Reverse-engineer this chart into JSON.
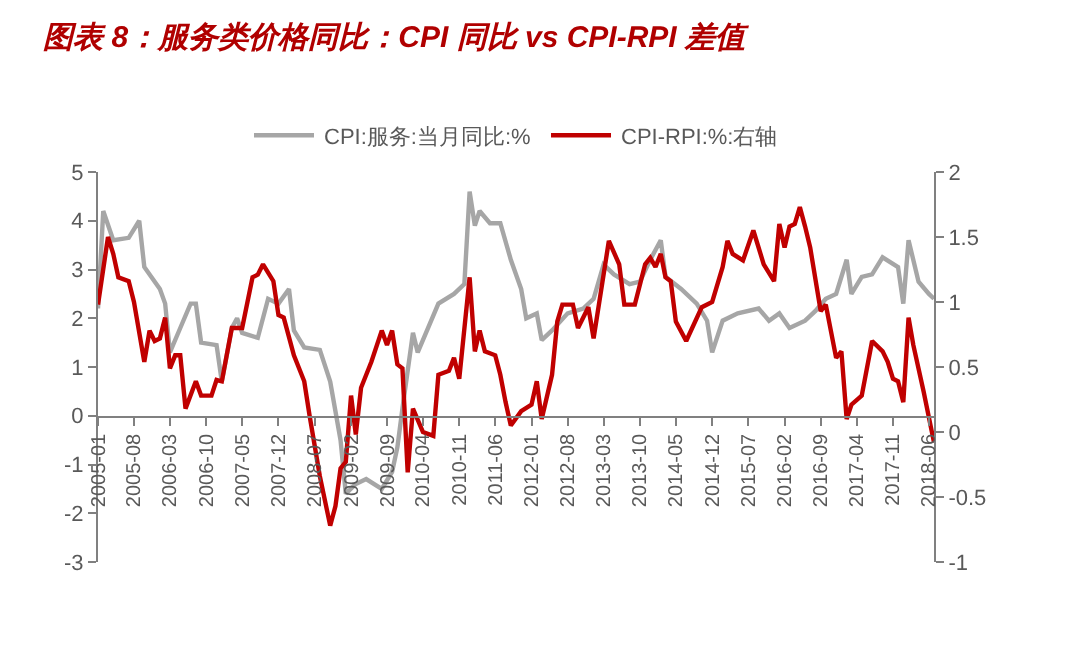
{
  "chart_data": {
    "type": "line",
    "title": "图表 8：服务类价格同比：CPI 同比 vs CPI-RPI 差值",
    "series": [
      {
        "name": "CPI:服务:当月同比:%",
        "color": "#a6a6a6",
        "axis": "y",
        "x": [
          "2005-01",
          "2005-02",
          "2005-04",
          "2005-07",
          "2005-09",
          "2005-10",
          "2006-01",
          "2006-02",
          "2006-03",
          "2006-05",
          "2006-07",
          "2006-08",
          "2006-09",
          "2006-12",
          "2007-01",
          "2007-03",
          "2007-04",
          "2007-05",
          "2007-08",
          "2007-10",
          "2007-12",
          "2008-02",
          "2008-03",
          "2008-05",
          "2008-08",
          "2008-10",
          "2008-12",
          "2009-01",
          "2009-03",
          "2009-05",
          "2009-08",
          "2009-10",
          "2009-11",
          "2009-12",
          "2010-02",
          "2010-03",
          "2010-07",
          "2010-10",
          "2010-12",
          "2011-01",
          "2011-02",
          "2011-03",
          "2011-05",
          "2011-07",
          "2011-09",
          "2011-11",
          "2011-12",
          "2012-02",
          "2012-03",
          "2012-05",
          "2012-08",
          "2012-11",
          "2013-01",
          "2013-03",
          "2013-05",
          "2013-08",
          "2013-10",
          "2013-12",
          "2014-02",
          "2014-03",
          "2014-06",
          "2014-09",
          "2014-11",
          "2014-12",
          "2015-02",
          "2015-05",
          "2015-09",
          "2015-11",
          "2016-01",
          "2016-03",
          "2016-06",
          "2016-08",
          "2016-10",
          "2016-12",
          "2017-02",
          "2017-03",
          "2017-05",
          "2017-07",
          "2017-09",
          "2017-12",
          "2018-01",
          "2018-02",
          "2018-04",
          "2018-06",
          "2018-07"
        ],
        "values": [
          2.2,
          4.2,
          3.6,
          3.65,
          4.0,
          3.05,
          2.6,
          2.3,
          1.3,
          1.8,
          2.3,
          2.3,
          1.5,
          1.45,
          0.7,
          1.8,
          2.0,
          1.7,
          1.6,
          2.4,
          2.3,
          2.6,
          1.75,
          1.4,
          1.35,
          0.7,
          -0.5,
          -1.6,
          -1.4,
          -1.3,
          -1.5,
          -1.15,
          -0.65,
          0.15,
          1.7,
          1.3,
          2.3,
          2.5,
          2.7,
          4.6,
          3.9,
          4.2,
          3.95,
          3.95,
          3.2,
          2.6,
          2.0,
          2.1,
          1.55,
          1.75,
          2.1,
          2.2,
          2.4,
          3.1,
          2.9,
          2.7,
          2.75,
          3.2,
          3.6,
          2.85,
          2.6,
          2.3,
          1.95,
          1.3,
          1.95,
          2.1,
          2.2,
          1.95,
          2.1,
          1.8,
          1.95,
          2.15,
          2.4,
          2.5,
          3.2,
          2.5,
          2.85,
          2.9,
          3.25,
          3.05,
          2.3,
          3.6,
          2.75,
          2.5,
          2.4
        ]
      },
      {
        "name": "CPI-RPI:%:右轴",
        "color": "#c00000",
        "axis": "y2",
        "x": [
          "2005-01",
          "2005-03",
          "2005-04",
          "2005-05",
          "2005-07",
          "2005-08",
          "2005-10",
          "2005-11",
          "2005-12",
          "2006-01",
          "2006-02",
          "2006-03",
          "2006-04",
          "2006-05",
          "2006-06",
          "2006-08",
          "2006-09",
          "2006-11",
          "2006-12",
          "2007-01",
          "2007-03",
          "2007-05",
          "2007-07",
          "2007-08",
          "2007-09",
          "2007-11",
          "2007-12",
          "2008-01",
          "2008-03",
          "2008-05",
          "2008-06",
          "2008-08",
          "2008-10",
          "2008-11",
          "2008-12",
          "2009-01",
          "2009-02",
          "2009-03",
          "2009-04",
          "2009-06",
          "2009-08",
          "2009-09",
          "2009-10",
          "2009-11",
          "2009-12",
          "2010-01",
          "2010-02",
          "2010-04",
          "2010-06",
          "2010-07",
          "2010-09",
          "2010-10",
          "2010-11",
          "2011-01",
          "2011-02",
          "2011-03",
          "2011-04",
          "2011-06",
          "2011-07",
          "2011-08",
          "2011-09",
          "2011-11",
          "2012-01",
          "2012-02",
          "2012-03",
          "2012-05",
          "2012-06",
          "2012-07",
          "2012-09",
          "2012-10",
          "2012-12",
          "2013-01",
          "2013-04",
          "2013-06",
          "2013-07",
          "2013-09",
          "2013-11",
          "2013-12",
          "2014-01",
          "2014-02",
          "2014-03",
          "2014-04",
          "2014-05",
          "2014-07",
          "2014-10",
          "2014-12",
          "2015-02",
          "2015-03",
          "2015-04",
          "2015-06",
          "2015-08",
          "2015-10",
          "2015-12",
          "2016-01",
          "2016-02",
          "2016-03",
          "2016-04",
          "2016-05",
          "2016-06",
          "2016-07",
          "2016-09",
          "2016-10",
          "2016-12",
          "2017-01",
          "2017-02",
          "2017-03",
          "2017-05",
          "2017-07",
          "2017-09",
          "2017-10",
          "2017-11",
          "2017-12",
          "2018-01",
          "2018-02",
          "2018-03",
          "2018-05",
          "2018-07"
        ],
        "values": [
          0.98,
          1.5,
          1.37,
          1.19,
          1.16,
          1.0,
          0.54,
          0.78,
          0.7,
          0.72,
          0.88,
          0.49,
          0.59,
          0.59,
          0.18,
          0.39,
          0.28,
          0.28,
          0.4,
          0.39,
          0.8,
          0.8,
          1.19,
          1.21,
          1.29,
          1.16,
          0.9,
          0.88,
          0.59,
          0.39,
          0.13,
          -0.34,
          -0.72,
          -0.57,
          -0.28,
          -0.23,
          0.28,
          -0.02,
          0.34,
          0.54,
          0.78,
          0.67,
          0.78,
          0.52,
          0.49,
          -0.31,
          0.18,
          0.0,
          -0.03,
          0.44,
          0.47,
          0.57,
          0.41,
          1.19,
          0.62,
          0.78,
          0.62,
          0.59,
          0.44,
          0.23,
          0.05,
          0.16,
          0.21,
          0.39,
          0.1,
          0.44,
          0.85,
          0.98,
          0.98,
          0.8,
          0.96,
          0.72,
          1.47,
          1.29,
          0.98,
          0.98,
          1.29,
          1.34,
          1.27,
          1.37,
          1.19,
          1.16,
          0.85,
          0.7,
          0.96,
          1.0,
          1.27,
          1.47,
          1.37,
          1.32,
          1.55,
          1.29,
          1.16,
          1.6,
          1.42,
          1.58,
          1.6,
          1.73,
          1.58,
          1.42,
          0.93,
          0.98,
          0.57,
          0.62,
          0.1,
          0.21,
          0.28,
          0.7,
          0.62,
          0.54,
          0.41,
          0.39,
          0.23,
          0.88,
          0.67,
          0.31,
          -0.08
        ]
      }
    ],
    "xlim": [
      "2005-01",
      "2018-07"
    ],
    "xticks": [
      {
        "value": "2005-01",
        "label": "2005-01"
      },
      {
        "value": "2005-08",
        "label": "2005-08"
      },
      {
        "value": "2006-03",
        "label": "2006-03"
      },
      {
        "value": "2006-10",
        "label": "2006-10"
      },
      {
        "value": "2007-05",
        "label": "2007-05"
      },
      {
        "value": "2007-12",
        "label": "2007-12"
      },
      {
        "value": "2008-07",
        "label": "2008-07"
      },
      {
        "value": "2009-02",
        "label": "2009-02"
      },
      {
        "value": "2009-09",
        "label": "2009-09"
      },
      {
        "value": "2010-04",
        "label": "2010-04"
      },
      {
        "value": "2010-11",
        "label": "2010-11"
      },
      {
        "value": "2011-06",
        "label": "2011-06"
      },
      {
        "value": "2012-01",
        "label": "2012-01"
      },
      {
        "value": "2012-08",
        "label": "2012-08"
      },
      {
        "value": "2013-03",
        "label": "2013-03"
      },
      {
        "value": "2013-10",
        "label": "2013-10"
      },
      {
        "value": "2014-05",
        "label": "2014-05"
      },
      {
        "value": "2014-12",
        "label": "2014-12"
      },
      {
        "value": "2015-07",
        "label": "2015-07"
      },
      {
        "value": "2016-02",
        "label": "2016-02"
      },
      {
        "value": "2016-09",
        "label": "2016-09"
      },
      {
        "value": "2017-04",
        "label": "2017-04"
      },
      {
        "value": "2017-11",
        "label": "2017-11"
      },
      {
        "value": "2018-06",
        "label": "2018-06"
      }
    ],
    "ylim": [
      -3,
      5
    ],
    "yticks": [
      -3,
      -2,
      -1,
      0,
      1,
      2,
      3,
      4,
      5
    ],
    "y2lim": [
      -1,
      2
    ],
    "y2ticks": [
      -1,
      -0.5,
      0,
      0.5,
      1,
      1.5,
      2
    ],
    "legend": "top",
    "marker": "none",
    "line_style": "solid"
  }
}
